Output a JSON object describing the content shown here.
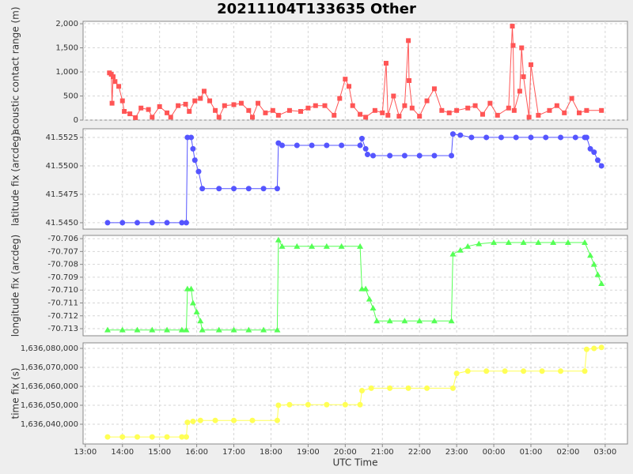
{
  "chart_data": [
    {
      "type": "line",
      "title": "20211104T133635 Other",
      "ylabel": "acoustic contact range (m)",
      "color": "#ff5555",
      "marker": "square",
      "grid": true,
      "xlim": [
        12.94,
        27.6
      ],
      "ylim": [
        0,
        2050
      ],
      "yticks": [
        0,
        500,
        {
          "value": 1000,
          "label": "1,000"
        },
        {
          "value": 1500,
          "label": "1,500"
        },
        {
          "value": 2000,
          "label": "2,000"
        }
      ],
      "x": [
        13.65,
        13.7,
        13.72,
        13.75,
        13.8,
        13.9,
        14.0,
        14.05,
        14.2,
        14.35,
        14.5,
        14.7,
        14.8,
        15.0,
        15.2,
        15.3,
        15.5,
        15.7,
        15.8,
        15.95,
        16.1,
        16.2,
        16.35,
        16.5,
        16.6,
        16.75,
        17.0,
        17.2,
        17.4,
        17.5,
        17.65,
        17.85,
        18.05,
        18.2,
        18.5,
        18.8,
        19.0,
        19.2,
        19.45,
        19.7,
        19.85,
        20.0,
        20.1,
        20.2,
        20.4,
        20.55,
        20.8,
        21.0,
        21.1,
        21.15,
        21.3,
        21.45,
        21.6,
        21.7,
        21.72,
        21.8,
        22.0,
        22.2,
        22.4,
        22.6,
        22.8,
        23.0,
        23.3,
        23.5,
        23.7,
        23.9,
        24.1,
        24.4,
        24.5,
        24.52,
        24.55,
        24.7,
        24.75,
        24.8,
        24.95,
        25.0,
        25.2,
        25.5,
        25.7,
        25.9,
        26.1,
        26.3,
        26.5,
        26.9
      ],
      "values": [
        980,
        950,
        350,
        900,
        800,
        700,
        400,
        180,
        130,
        50,
        250,
        220,
        60,
        280,
        150,
        60,
        300,
        330,
        180,
        400,
        450,
        600,
        400,
        200,
        60,
        300,
        320,
        350,
        200,
        60,
        350,
        150,
        200,
        100,
        200,
        180,
        250,
        300,
        300,
        100,
        450,
        850,
        700,
        300,
        120,
        60,
        200,
        150,
        1180,
        100,
        500,
        80,
        300,
        1650,
        820,
        250,
        80,
        400,
        650,
        200,
        150,
        200,
        250,
        300,
        120,
        350,
        100,
        250,
        1950,
        1550,
        200,
        600,
        1500,
        900,
        60,
        1150,
        100,
        200,
        300,
        150,
        450,
        150,
        200,
        200
      ]
    },
    {
      "type": "line",
      "ylabel": "latitude fix (arcdeg)",
      "color": "#5555ff",
      "marker": "circle",
      "grid": true,
      "xlim": [
        12.94,
        27.6
      ],
      "ylim": [
        41.54444,
        41.55326
      ],
      "yticks": [
        {
          "value": 41.545,
          "label": "41.5450"
        },
        {
          "value": 41.5475,
          "label": "41.5475"
        },
        {
          "value": 41.55,
          "label": "41.5500"
        },
        {
          "value": 41.5525,
          "label": "41.5525"
        }
      ],
      "x": [
        13.6,
        14.0,
        14.4,
        14.8,
        15.2,
        15.6,
        15.72,
        15.75,
        15.85,
        15.9,
        15.95,
        16.05,
        16.15,
        16.6,
        17.0,
        17.4,
        17.8,
        18.17,
        18.2,
        18.3,
        18.7,
        19.1,
        19.5,
        19.9,
        20.4,
        20.45,
        20.55,
        20.6,
        20.75,
        21.2,
        21.6,
        22.0,
        22.4,
        22.86,
        22.9,
        23.1,
        23.4,
        23.8,
        24.2,
        24.6,
        25.0,
        25.4,
        25.8,
        26.2,
        26.45,
        26.5,
        26.6,
        26.7,
        26.8,
        26.9
      ],
      "values": [
        41.545,
        41.545,
        41.545,
        41.545,
        41.545,
        41.545,
        41.545,
        41.5525,
        41.5525,
        41.5515,
        41.5505,
        41.5495,
        41.548,
        41.548,
        41.548,
        41.548,
        41.548,
        41.548,
        41.552,
        41.5518,
        41.5518,
        41.5518,
        41.5518,
        41.5518,
        41.5518,
        41.5524,
        41.5515,
        41.551,
        41.5509,
        41.5509,
        41.5509,
        41.5509,
        41.5509,
        41.5509,
        41.5528,
        41.5527,
        41.5525,
        41.5525,
        41.5525,
        41.5525,
        41.5525,
        41.5525,
        41.5525,
        41.5525,
        41.5525,
        41.5525,
        41.5515,
        41.5512,
        41.5505,
        41.55
      ]
    },
    {
      "type": "line",
      "ylabel": "longitude fix (arcdeg)",
      "color": "#55ff55",
      "marker": "triangle",
      "grid": true,
      "xlim": [
        12.94,
        27.6
      ],
      "ylim": [
        -70.71355,
        -70.70575
      ],
      "yticks": [
        -70.706,
        -70.707,
        -70.708,
        -70.709,
        {
          "value": -70.71,
          "label": "-70.710"
        },
        -70.711,
        -70.712,
        -70.713
      ],
      "x": [
        13.6,
        14.0,
        14.4,
        14.8,
        15.2,
        15.6,
        15.72,
        15.75,
        15.85,
        15.9,
        16.0,
        16.1,
        16.15,
        16.6,
        17.0,
        17.4,
        17.8,
        18.17,
        18.2,
        18.3,
        18.7,
        19.1,
        19.5,
        19.9,
        20.4,
        20.45,
        20.55,
        20.65,
        20.75,
        20.85,
        21.2,
        21.6,
        22.0,
        22.4,
        22.86,
        22.9,
        23.1,
        23.3,
        23.6,
        24.0,
        24.4,
        24.8,
        25.2,
        25.6,
        26.0,
        26.45,
        26.6,
        26.7,
        26.8,
        26.9
      ],
      "values": [
        -70.7131,
        -70.7131,
        -70.7131,
        -70.7131,
        -70.7131,
        -70.7131,
        -70.7131,
        -70.7099,
        -70.7099,
        -70.711,
        -70.7117,
        -70.7124,
        -70.7131,
        -70.7131,
        -70.7131,
        -70.7131,
        -70.7131,
        -70.7131,
        -70.7061,
        -70.7066,
        -70.7066,
        -70.7066,
        -70.7066,
        -70.7066,
        -70.7066,
        -70.7099,
        -70.7099,
        -70.7107,
        -70.7114,
        -70.7124,
        -70.7124,
        -70.7124,
        -70.7124,
        -70.7124,
        -70.7124,
        -70.7072,
        -70.7069,
        -70.7066,
        -70.7064,
        -70.7063,
        -70.7063,
        -70.7063,
        -70.7063,
        -70.7063,
        -70.7063,
        -70.7063,
        -70.7073,
        -70.708,
        -70.7088,
        -70.7095
      ]
    },
    {
      "type": "line",
      "ylabel": "time fix (s)",
      "xlabel": "UTC Time",
      "color": "#ffff55",
      "marker": "circle",
      "grid": true,
      "xlim": [
        12.94,
        27.6
      ],
      "ylim": [
        1636029583,
        1636082917
      ],
      "xticks": [
        {
          "value": 13,
          "label": "13:00"
        },
        {
          "value": 14,
          "label": "14:00"
        },
        {
          "value": 15,
          "label": "15:00"
        },
        {
          "value": 16,
          "label": "16:00"
        },
        {
          "value": 17,
          "label": "17:00"
        },
        {
          "value": 18,
          "label": "18:00"
        },
        {
          "value": 19,
          "label": "19:00"
        },
        {
          "value": 20,
          "label": "20:00"
        },
        {
          "value": 21,
          "label": "21:00"
        },
        {
          "value": 22,
          "label": "22:00"
        },
        {
          "value": 23,
          "label": "23:00"
        },
        {
          "value": 24,
          "label": "00:00"
        },
        {
          "value": 25,
          "label": "01:00"
        },
        {
          "value": 26,
          "label": "02:00"
        },
        {
          "value": 27,
          "label": "03:00"
        }
      ],
      "yticks": [
        {
          "value": 1636040000,
          "label": "1,636,040,000"
        },
        {
          "value": 1636050000,
          "label": "1,636,050,000"
        },
        {
          "value": 1636060000,
          "label": "1,636,060,000"
        },
        {
          "value": 1636070000,
          "label": "1,636,070,000"
        },
        {
          "value": 1636080000,
          "label": "1,636,080,000"
        }
      ],
      "x": [
        13.6,
        14.0,
        14.4,
        14.8,
        15.2,
        15.6,
        15.72,
        15.75,
        15.9,
        16.1,
        16.5,
        17.0,
        17.5,
        18.17,
        18.2,
        18.5,
        19.0,
        19.5,
        20.0,
        20.4,
        20.45,
        20.7,
        21.2,
        21.7,
        22.2,
        22.9,
        23.0,
        23.3,
        23.8,
        24.3,
        24.8,
        25.3,
        25.8,
        26.45,
        26.5,
        26.7,
        26.9
      ],
      "values": [
        1636033300,
        1636033300,
        1636033300,
        1636033300,
        1636033300,
        1636033300,
        1636033300,
        1636041000,
        1636041500,
        1636042000,
        1636042000,
        1636042000,
        1636042000,
        1636042000,
        1636050000,
        1636050300,
        1636050300,
        1636050300,
        1636050300,
        1636050300,
        1636057700,
        1636059000,
        1636059000,
        1636059000,
        1636059000,
        1636059000,
        1636066800,
        1636068000,
        1636068000,
        1636068000,
        1636068000,
        1636068000,
        1636068000,
        1636068000,
        1636079500,
        1636080000,
        1636080500
      ]
    }
  ]
}
